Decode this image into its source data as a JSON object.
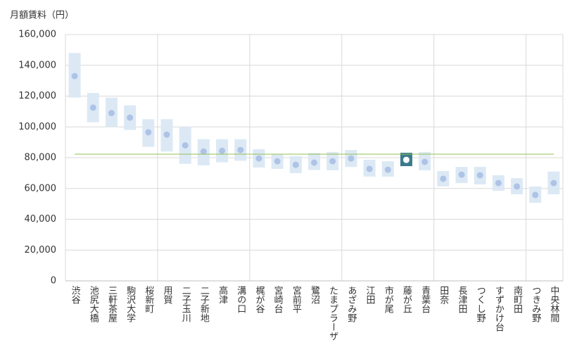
{
  "chart_data": {
    "type": "range",
    "y_title": "月額賃料（円）",
    "categories": [
      "渋谷",
      "池尻大橋",
      "三軒茶屋",
      "駒沢大学",
      "桜新町",
      "用賀",
      "二子玉川",
      "二子新地",
      "高津",
      "溝の口",
      "梶が谷",
      "宮崎台",
      "宮前平",
      "鷺沼",
      "たまプラーザ",
      "あざみ野",
      "江田",
      "市が尾",
      "藤が丘",
      "青葉台",
      "田奈",
      "長津田",
      "つくし野",
      "すずかけ台",
      "南町田",
      "つきみ野",
      "中央林間"
    ],
    "low": [
      119000,
      103000,
      100000,
      98000,
      87000,
      84000,
      76000,
      75000,
      77000,
      78000,
      73600,
      72700,
      70000,
      72000,
      71800,
      74000,
      67700,
      67700,
      74500,
      71800,
      61300,
      63500,
      62600,
      58500,
      56200,
      50700,
      56200
    ],
    "high": [
      148000,
      122000,
      119000,
      114000,
      105000,
      105000,
      100000,
      92000,
      92000,
      92000,
      85500,
      82000,
      81000,
      83000,
      83700,
      85000,
      78600,
      77700,
      83200,
      83700,
      71300,
      74000,
      74000,
      68600,
      66700,
      61300,
      71000
    ],
    "values": [
      133000,
      112500,
      109000,
      106000,
      96500,
      95000,
      88000,
      84000,
      84500,
      85000,
      79500,
      77700,
      75400,
      76800,
      77700,
      79500,
      72700,
      72200,
      78600,
      77300,
      66300,
      69000,
      68600,
      63500,
      61300,
      55800,
      63500
    ],
    "range_color": "#dce9f5",
    "dot_color": "#aec3e6",
    "highlight_index": 18,
    "highlight_color": "#3b7a8c",
    "highlight_dot_color": "#ffffff",
    "reference_line": 82300,
    "reference_color": "#92c050",
    "ylim": [
      0,
      160000
    ],
    "yticks": [
      0,
      {
        "value": 20000,
        "label": "20,000"
      },
      {
        "value": 40000,
        "label": "40,000"
      },
      {
        "value": 60000,
        "label": "60,000"
      },
      {
        "value": 80000,
        "label": "80,000"
      },
      {
        "value": 100000,
        "label": "100,000"
      },
      {
        "value": 120000,
        "label": "120,000"
      },
      {
        "value": 140000,
        "label": "140,000"
      },
      {
        "value": 160000,
        "label": "160,000"
      }
    ],
    "grid": true,
    "x_grid_every": 5
  }
}
